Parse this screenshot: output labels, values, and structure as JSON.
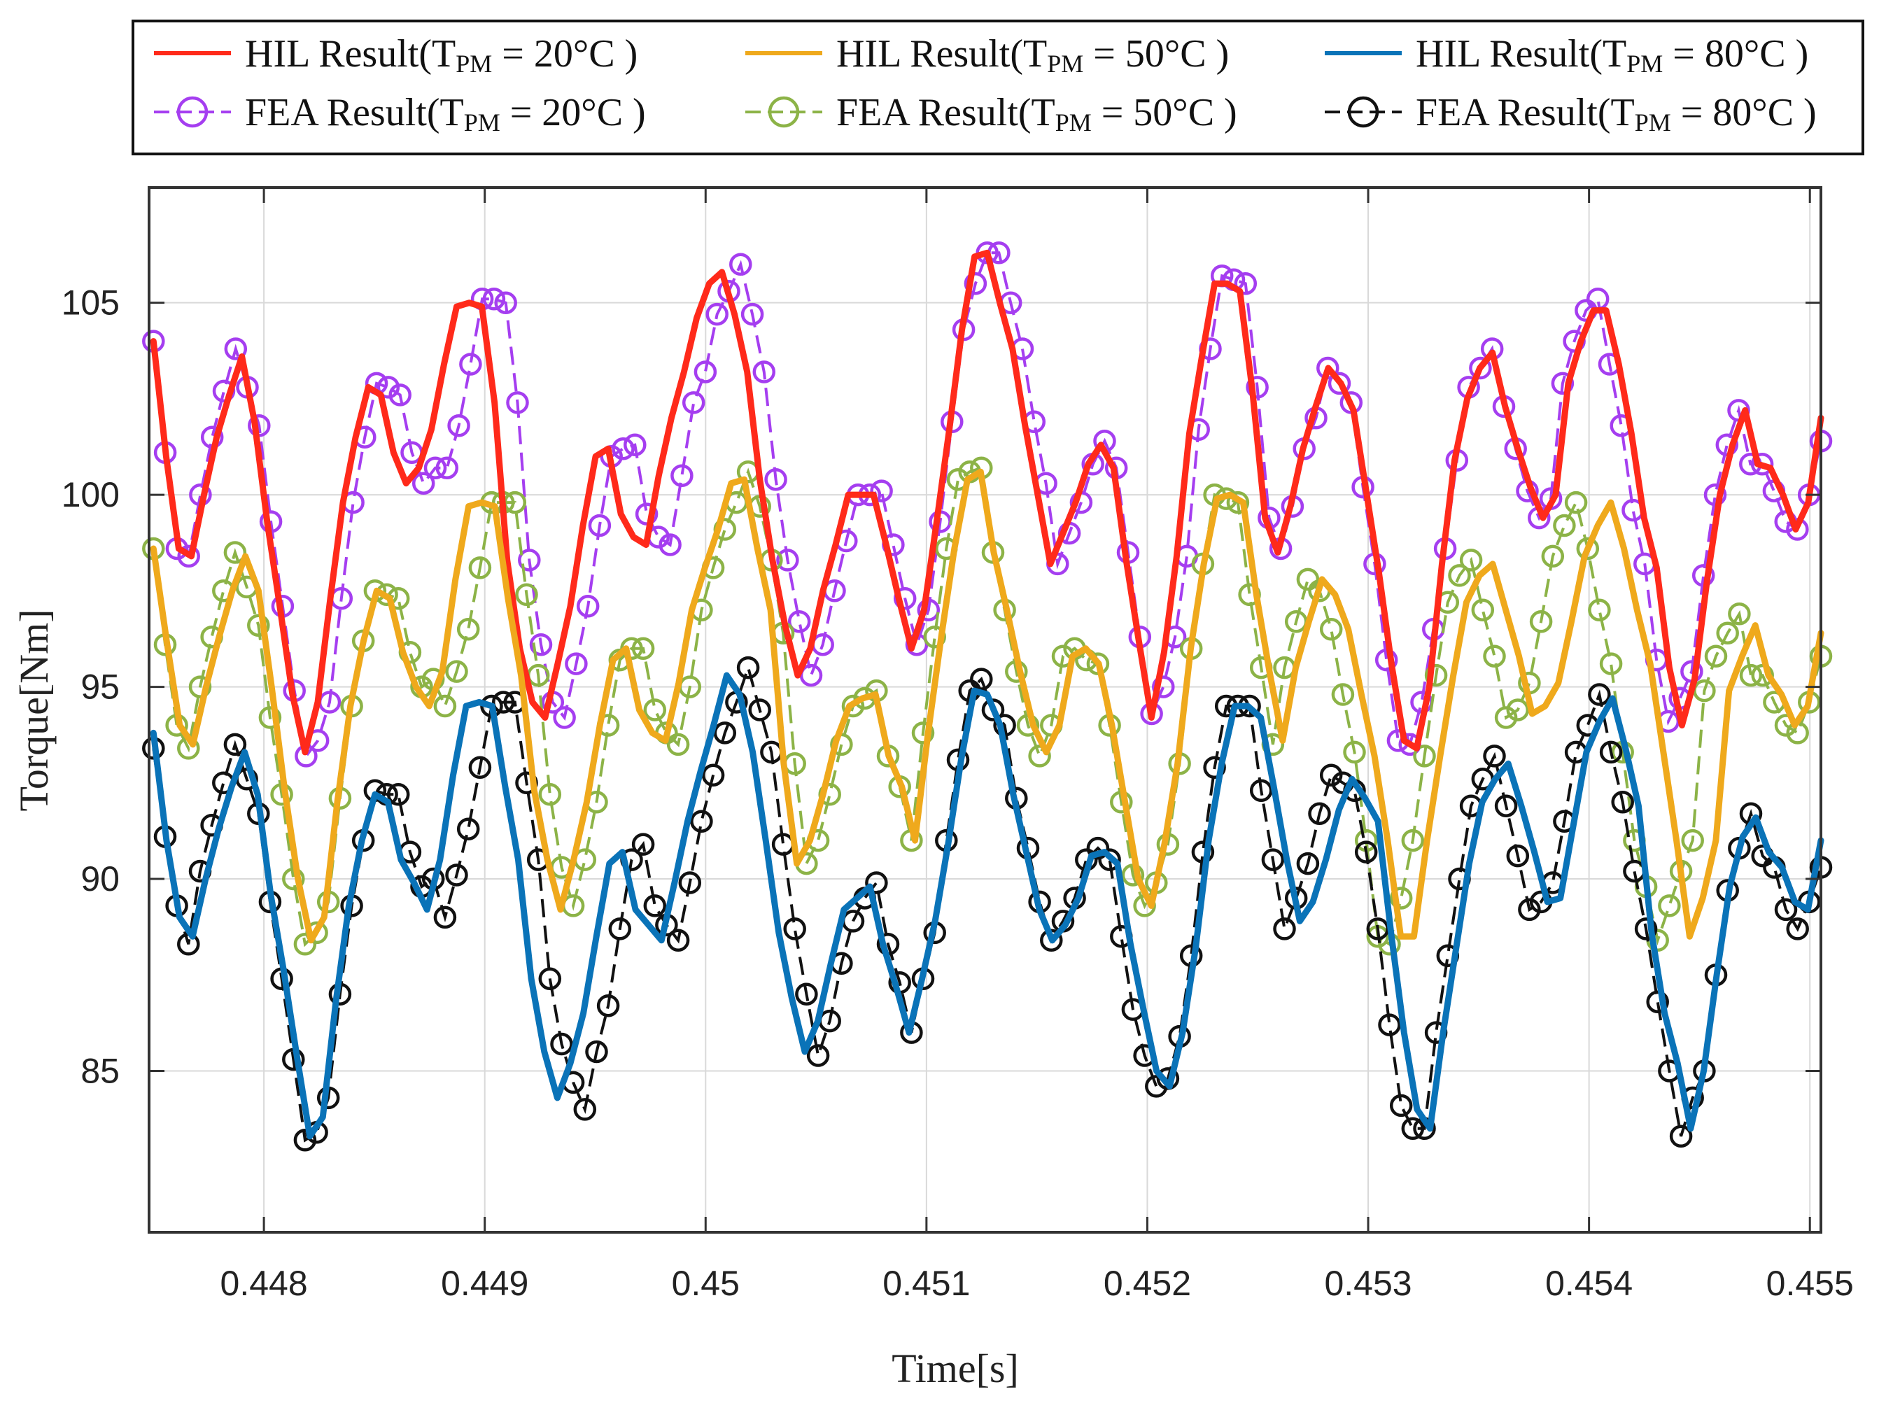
{
  "chart_data": {
    "type": "line",
    "title": "",
    "xlabel": "Time[s]",
    "ylabel": "Torque[Nm]",
    "xlim": [
      0.44748,
      0.45505
    ],
    "ylim": [
      80.8,
      108
    ],
    "grid": true,
    "legend_position": "top, outside, boxed, 3 columns",
    "x_tick_values": [
      0.448,
      0.449,
      0.45,
      0.451,
      0.452,
      0.453,
      0.454,
      0.455
    ],
    "x_tick_labels": [
      "0.448",
      "0.449",
      "0.45",
      "0.451",
      "0.452",
      "0.453",
      "0.454",
      "0.455"
    ],
    "y_tick_values": [
      85,
      90,
      95,
      100,
      105
    ],
    "y_tick_labels": [
      "85",
      "90",
      "95",
      "100",
      "105"
    ],
    "sample_interval_s": 0.0001,
    "x_start": 0.4475,
    "series": [
      {
        "name": "HIL Result(T_PM = 20°C )",
        "legend_prefix": "HIL Result(T",
        "legend_sub": "PM",
        "legend_suffix": " = 20°C )",
        "color": "#ff2a1a",
        "style": "solid",
        "marker": "none",
        "values": [
          104.0,
          101.0,
          98.6,
          98.4,
          100.0,
          101.5,
          102.6,
          103.6,
          101.9,
          99.3,
          97.1,
          94.8,
          93.3,
          94.6,
          97.3,
          99.8,
          101.5,
          102.8,
          102.6,
          101.1,
          100.3,
          100.7,
          101.7,
          103.4,
          104.9,
          105.0,
          104.9,
          102.4,
          98.3,
          96.0,
          94.6,
          94.2,
          95.6,
          97.1,
          99.2,
          101.0,
          101.2,
          99.5,
          98.9,
          98.7,
          100.5,
          102.0,
          103.2,
          104.6,
          105.5,
          105.8,
          104.7,
          103.2,
          100.4,
          98.3,
          96.6,
          95.3,
          96.0,
          97.5,
          98.7,
          100.0,
          100.0,
          100.0,
          98.7,
          97.3,
          96.0,
          97.0,
          99.3,
          101.7,
          104.3,
          106.2,
          106.3,
          105.0,
          103.8,
          101.8,
          100.0,
          98.2,
          99.0,
          99.8,
          100.8,
          101.3,
          100.7,
          98.3,
          96.2,
          94.2,
          95.9,
          98.4,
          101.6,
          103.6,
          105.5,
          105.5,
          105.3,
          102.7,
          99.4,
          98.5,
          99.7,
          101.2,
          102.3,
          103.3,
          102.9,
          102.2,
          100.1,
          98.0,
          95.6,
          93.6,
          93.4,
          95.0,
          98.2,
          100.9,
          102.5,
          103.3,
          103.7,
          102.3,
          101.2,
          100.2,
          99.4,
          100.0,
          102.9,
          104.0,
          104.8,
          104.8,
          103.4,
          101.6,
          99.4,
          98.1,
          95.5,
          94.0,
          95.2,
          97.8,
          100.0,
          101.3,
          102.2,
          100.8,
          100.7,
          100.0,
          99.1,
          99.8,
          102.0
        ]
      },
      {
        "name": "HIL Result(T_PM = 50°C )",
        "legend_prefix": "HIL Result(T",
        "legend_sub": "PM",
        "legend_suffix": " = 50°C )",
        "color": "#efa91c",
        "style": "solid",
        "marker": "none",
        "values": [
          98.6,
          96.2,
          94.0,
          93.5,
          95.0,
          96.3,
          97.5,
          98.4,
          97.5,
          95.0,
          92.3,
          90.0,
          88.4,
          89.0,
          92.0,
          94.5,
          96.2,
          97.5,
          97.3,
          95.9,
          95.0,
          94.5,
          95.4,
          97.8,
          99.7,
          99.8,
          99.7,
          97.3,
          95.3,
          92.3,
          90.5,
          89.2,
          90.5,
          92.0,
          94.0,
          95.7,
          96.0,
          94.4,
          93.8,
          93.6,
          95.1,
          97.0,
          98.1,
          99.1,
          100.3,
          100.4,
          98.6,
          97.0,
          93.0,
          90.4,
          91.0,
          92.2,
          93.6,
          94.5,
          94.7,
          94.8,
          93.2,
          92.4,
          91.0,
          93.8,
          96.3,
          98.6,
          100.4,
          100.6,
          98.5,
          97.0,
          95.4,
          94.0,
          93.3,
          94.0,
          95.8,
          96.0,
          95.6,
          94.0,
          92.0,
          90.0,
          89.3,
          90.9,
          93.0,
          96.0,
          98.2,
          99.9,
          100.0,
          99.8,
          97.4,
          95.4,
          93.6,
          95.5,
          96.7,
          97.8,
          97.4,
          96.5,
          94.8,
          93.2,
          91.0,
          88.5,
          88.5,
          91.0,
          93.2,
          95.3,
          97.2,
          97.9,
          98.2,
          97.0,
          95.8,
          94.3,
          94.5,
          95.1,
          96.7,
          98.4,
          99.2,
          99.8,
          98.6,
          97.0,
          95.6,
          93.3,
          91.0,
          88.5,
          89.5,
          91.0,
          94.9,
          95.8,
          96.6,
          95.3,
          94.8,
          94.0,
          94.5,
          96.4
        ]
      },
      {
        "name": "HIL Result(T_PM = 80°C )",
        "legend_prefix": "HIL Result(T",
        "legend_sub": "PM",
        "legend_suffix": " = 80°C )",
        "color": "#0a73b8",
        "style": "solid",
        "marker": "none",
        "values": [
          93.8,
          91.0,
          89.0,
          88.5,
          90.0,
          91.3,
          92.4,
          93.3,
          92.2,
          89.6,
          87.6,
          85.4,
          83.3,
          83.8,
          86.8,
          89.3,
          91.0,
          92.2,
          92.0,
          90.5,
          89.9,
          89.2,
          90.5,
          92.7,
          94.5,
          94.6,
          94.5,
          92.4,
          90.5,
          87.4,
          85.5,
          84.3,
          85.2,
          86.5,
          88.5,
          90.4,
          90.7,
          89.2,
          88.8,
          88.4,
          89.9,
          91.5,
          92.8,
          94.0,
          95.3,
          94.8,
          93.3,
          91.0,
          88.6,
          86.9,
          85.5,
          86.3,
          87.8,
          89.2,
          89.5,
          89.8,
          88.3,
          87.2,
          86.0,
          87.4,
          88.9,
          90.9,
          93.1,
          94.9,
          94.8,
          94.0,
          92.2,
          90.7,
          89.2,
          88.4,
          88.8,
          89.5,
          90.6,
          90.7,
          90.4,
          88.3,
          86.6,
          85.0,
          84.6,
          86.0,
          88.2,
          91.0,
          93.0,
          94.5,
          94.5,
          94.2,
          92.4,
          90.5,
          88.9,
          89.4,
          90.5,
          91.8,
          92.6,
          92.1,
          91.5,
          88.6,
          86.0,
          84.0,
          83.5,
          86.0,
          88.2,
          90.4,
          92.0,
          92.6,
          93.0,
          91.9,
          90.7,
          89.4,
          89.5,
          91.4,
          93.3,
          94.1,
          94.7,
          93.4,
          91.9,
          88.6,
          86.5,
          85.2,
          83.5,
          85.0,
          87.5,
          89.8,
          91.1,
          91.6,
          90.7,
          90.3,
          89.4,
          89.2,
          91.0
        ]
      },
      {
        "name": "FEA Result(T_PM = 20°C )",
        "legend_prefix": "FEA Result(T",
        "legend_sub": "PM",
        "legend_suffix": " = 20°C )",
        "color": "#a53ef0",
        "style": "dashed",
        "marker": "circle",
        "values": [
          104.0,
          101.1,
          98.6,
          98.4,
          100.0,
          101.5,
          102.7,
          103.8,
          102.8,
          101.8,
          99.3,
          97.1,
          94.9,
          93.2,
          93.6,
          94.6,
          97.3,
          99.8,
          101.5,
          102.9,
          102.8,
          102.6,
          101.1,
          100.3,
          100.7,
          100.7,
          101.8,
          103.4,
          105.1,
          105.1,
          105.0,
          102.4,
          98.3,
          96.1,
          94.6,
          94.2,
          95.6,
          97.1,
          99.2,
          101.0,
          101.2,
          101.3,
          99.5,
          98.9,
          98.7,
          100.5,
          102.4,
          103.2,
          104.7,
          105.3,
          106.0,
          104.7,
          103.2,
          100.4,
          98.3,
          96.7,
          95.3,
          96.1,
          97.5,
          98.8,
          100.0,
          100.0,
          100.1,
          98.7,
          97.3,
          96.1,
          97.0,
          99.3,
          101.9,
          104.3,
          105.5,
          106.3,
          106.3,
          105.0,
          103.8,
          101.9,
          100.3,
          98.2,
          99.0,
          99.8,
          100.8,
          101.4,
          100.7,
          98.5,
          96.3,
          94.3,
          95.0,
          96.3,
          98.4,
          101.7,
          103.8,
          105.7,
          105.6,
          105.5,
          102.8,
          99.4,
          98.6,
          99.7,
          101.2,
          102.0,
          103.3,
          102.9,
          102.4,
          100.2,
          98.2,
          95.7,
          93.6,
          93.5,
          94.6,
          96.5,
          98.6,
          100.9,
          102.8,
          103.3,
          103.8,
          102.3,
          101.2,
          100.1,
          99.4,
          99.9,
          102.9,
          104.0,
          104.8,
          105.1,
          103.4,
          101.8,
          99.6,
          98.2,
          95.7,
          94.1,
          94.7,
          95.4,
          97.9,
          100.0,
          101.3,
          102.2,
          100.8,
          100.8,
          100.1,
          99.3,
          99.1,
          100.0,
          101.4
        ]
      },
      {
        "name": "FEA Result(T_PM = 50°C )",
        "legend_prefix": "FEA Result(T",
        "legend_sub": "PM",
        "legend_suffix": " = 50°C )",
        "color": "#8cb347",
        "style": "dashed",
        "marker": "circle",
        "values": [
          98.6,
          96.1,
          94.0,
          93.4,
          95.0,
          96.3,
          97.5,
          98.5,
          97.6,
          96.6,
          94.2,
          92.2,
          90.0,
          88.3,
          88.6,
          89.4,
          92.1,
          94.5,
          96.2,
          97.5,
          97.4,
          97.3,
          95.9,
          95.0,
          95.2,
          94.5,
          95.4,
          96.5,
          98.1,
          99.8,
          99.8,
          99.8,
          97.4,
          95.3,
          92.2,
          90.3,
          89.3,
          90.5,
          92.0,
          94.0,
          95.7,
          96.0,
          96.0,
          94.4,
          93.8,
          93.5,
          95.0,
          97.0,
          98.1,
          99.1,
          99.8,
          100.6,
          99.7,
          98.3,
          96.4,
          93.0,
          90.4,
          91.0,
          92.2,
          93.5,
          94.5,
          94.7,
          94.9,
          93.2,
          92.4,
          91.0,
          93.8,
          96.3,
          98.6,
          100.4,
          100.6,
          100.7,
          98.5,
          97.0,
          95.4,
          94.0,
          93.2,
          94.0,
          95.8,
          96.0,
          95.7,
          95.6,
          94.0,
          92.0,
          90.1,
          89.3,
          89.9,
          90.9,
          93.0,
          96.0,
          98.2,
          100.0,
          99.9,
          99.8,
          97.4,
          95.5,
          93.5,
          95.5,
          96.7,
          97.8,
          97.5,
          96.5,
          94.8,
          93.3,
          91.0,
          88.5,
          88.3,
          89.5,
          91.0,
          93.2,
          95.3,
          97.2,
          97.9,
          98.3,
          97.0,
          95.8,
          94.2,
          94.4,
          95.1,
          96.7,
          98.4,
          99.2,
          99.8,
          98.6,
          97.0,
          95.6,
          93.3,
          91.0,
          89.8,
          88.4,
          89.3,
          90.2,
          91.0,
          94.9,
          95.8,
          96.4,
          96.9,
          95.3,
          95.3,
          94.6,
          94.0,
          93.8,
          94.6,
          95.8
        ]
      },
      {
        "name": "FEA Result(T_PM = 80°C )",
        "legend_prefix": "FEA Result(T",
        "legend_sub": "PM",
        "legend_suffix": " = 80°C )",
        "color": "#111111",
        "style": "dashed",
        "marker": "circle",
        "values": [
          93.4,
          91.1,
          89.3,
          88.3,
          90.2,
          91.4,
          92.5,
          93.5,
          92.6,
          91.7,
          89.4,
          87.4,
          85.3,
          83.2,
          83.4,
          84.3,
          87.0,
          89.3,
          91.0,
          92.3,
          92.2,
          92.2,
          90.7,
          89.8,
          90.0,
          89.0,
          90.1,
          91.3,
          92.9,
          94.5,
          94.6,
          94.6,
          92.5,
          90.5,
          87.4,
          85.7,
          84.7,
          84.0,
          85.5,
          86.7,
          88.7,
          90.5,
          90.9,
          89.3,
          88.8,
          88.4,
          89.9,
          91.5,
          92.7,
          93.8,
          94.6,
          95.5,
          94.4,
          93.3,
          90.9,
          88.7,
          87.0,
          85.4,
          86.3,
          87.8,
          88.9,
          89.5,
          89.9,
          88.3,
          87.3,
          86.0,
          87.4,
          88.6,
          91.0,
          93.1,
          94.9,
          95.2,
          94.4,
          94.0,
          92.1,
          90.8,
          89.4,
          88.4,
          88.9,
          89.5,
          90.5,
          90.8,
          90.5,
          88.5,
          86.6,
          85.4,
          84.6,
          84.8,
          85.9,
          88.0,
          90.7,
          92.9,
          94.5,
          94.5,
          94.5,
          92.3,
          90.5,
          88.7,
          89.5,
          90.4,
          91.7,
          92.7,
          92.5,
          92.3,
          90.7,
          88.7,
          86.2,
          84.1,
          83.5,
          83.5,
          86.0,
          88.0,
          90.0,
          91.9,
          92.6,
          93.2,
          91.9,
          90.6,
          89.2,
          89.4,
          89.9,
          91.5,
          93.3,
          94.0,
          94.8,
          93.3,
          92.0,
          90.2,
          88.7,
          86.8,
          85.0,
          83.3,
          84.3,
          85.0,
          87.5,
          89.7,
          90.8,
          91.7,
          90.6,
          90.3,
          89.2,
          88.7,
          89.4,
          90.3
        ]
      }
    ]
  }
}
